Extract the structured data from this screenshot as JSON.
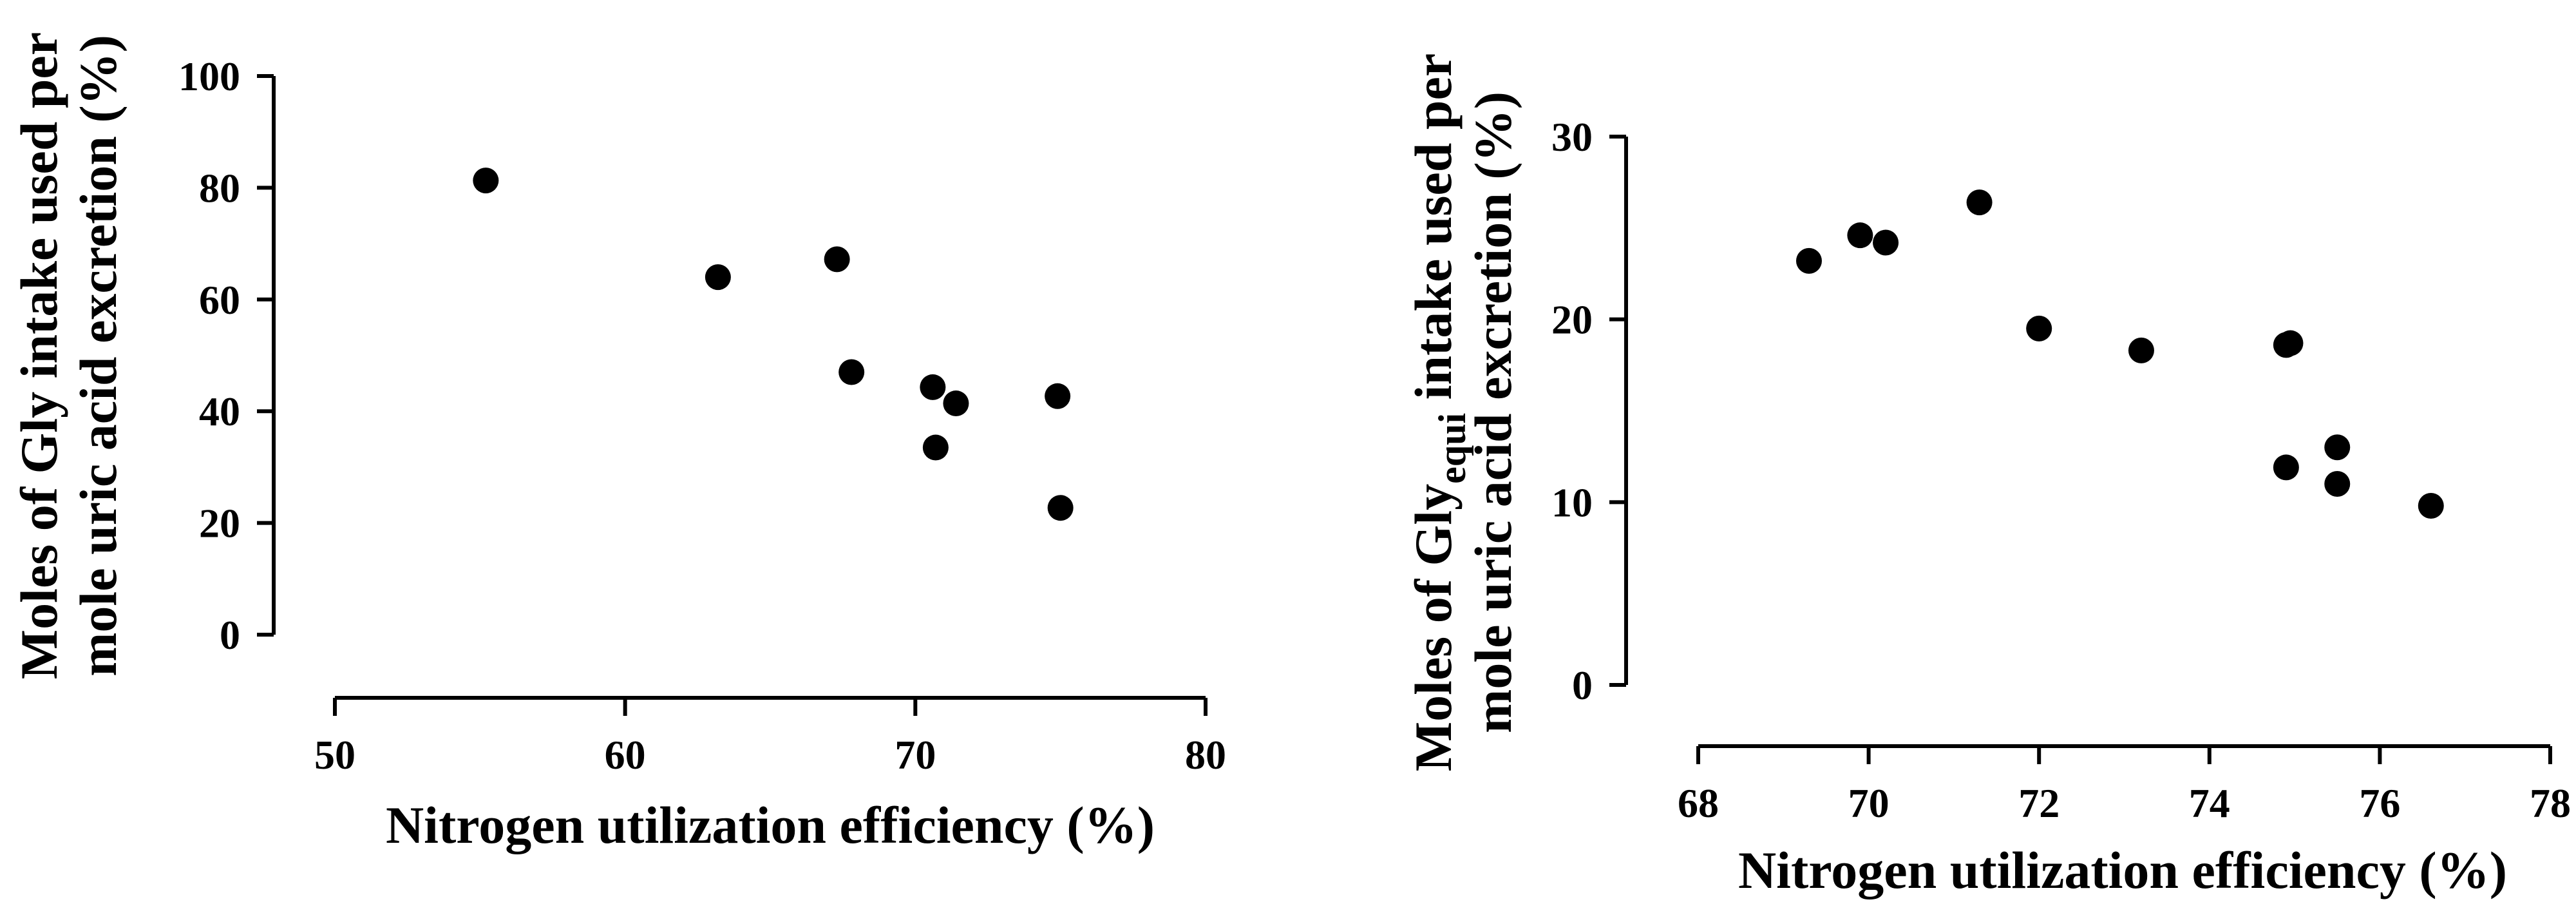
{
  "chart_data": [
    {
      "type": "scatter",
      "title": "",
      "xlabel": "Nitrogen utilization efficiency (%)",
      "ylabel_lines": [
        {
          "text": "Moles of Gly intake used per"
        },
        {
          "text": "mole uric acid excretion (%)"
        }
      ],
      "xlim": [
        50,
        80
      ],
      "ylim": [
        0,
        100
      ],
      "xticks": [
        50,
        60,
        70,
        80
      ],
      "yticks": [
        0,
        20,
        40,
        60,
        80,
        100
      ],
      "x": [
        55.2,
        63.2,
        67.3,
        67.8,
        70.6,
        70.7,
        71.4,
        74.9,
        75.0
      ],
      "y": [
        81.3,
        64.0,
        67.2,
        47.0,
        44.3,
        33.5,
        41.4,
        42.7,
        22.7
      ],
      "grid": false,
      "legend": "none"
    },
    {
      "type": "scatter",
      "title": "",
      "xlabel": "Nitrogen utilization efficiency (%)",
      "ylabel_lines": [
        {
          "text": "Moles of Gly",
          "sub": "equi",
          "rest": " intake used per"
        },
        {
          "text": "mole uric acid excretion (%)"
        }
      ],
      "xlim": [
        68,
        78
      ],
      "ylim": [
        0,
        30
      ],
      "xticks": [
        68,
        70,
        72,
        74,
        76,
        78
      ],
      "yticks": [
        0,
        10,
        20,
        30
      ],
      "x": [
        69.3,
        69.9,
        70.2,
        71.3,
        72.0,
        73.2,
        74.9,
        74.95,
        74.9,
        75.5,
        75.5,
        76.6
      ],
      "y": [
        23.2,
        24.6,
        24.2,
        26.4,
        19.5,
        18.3,
        18.6,
        18.7,
        11.9,
        13.0,
        11.0,
        9.8
      ],
      "grid": false,
      "legend": "none"
    }
  ]
}
